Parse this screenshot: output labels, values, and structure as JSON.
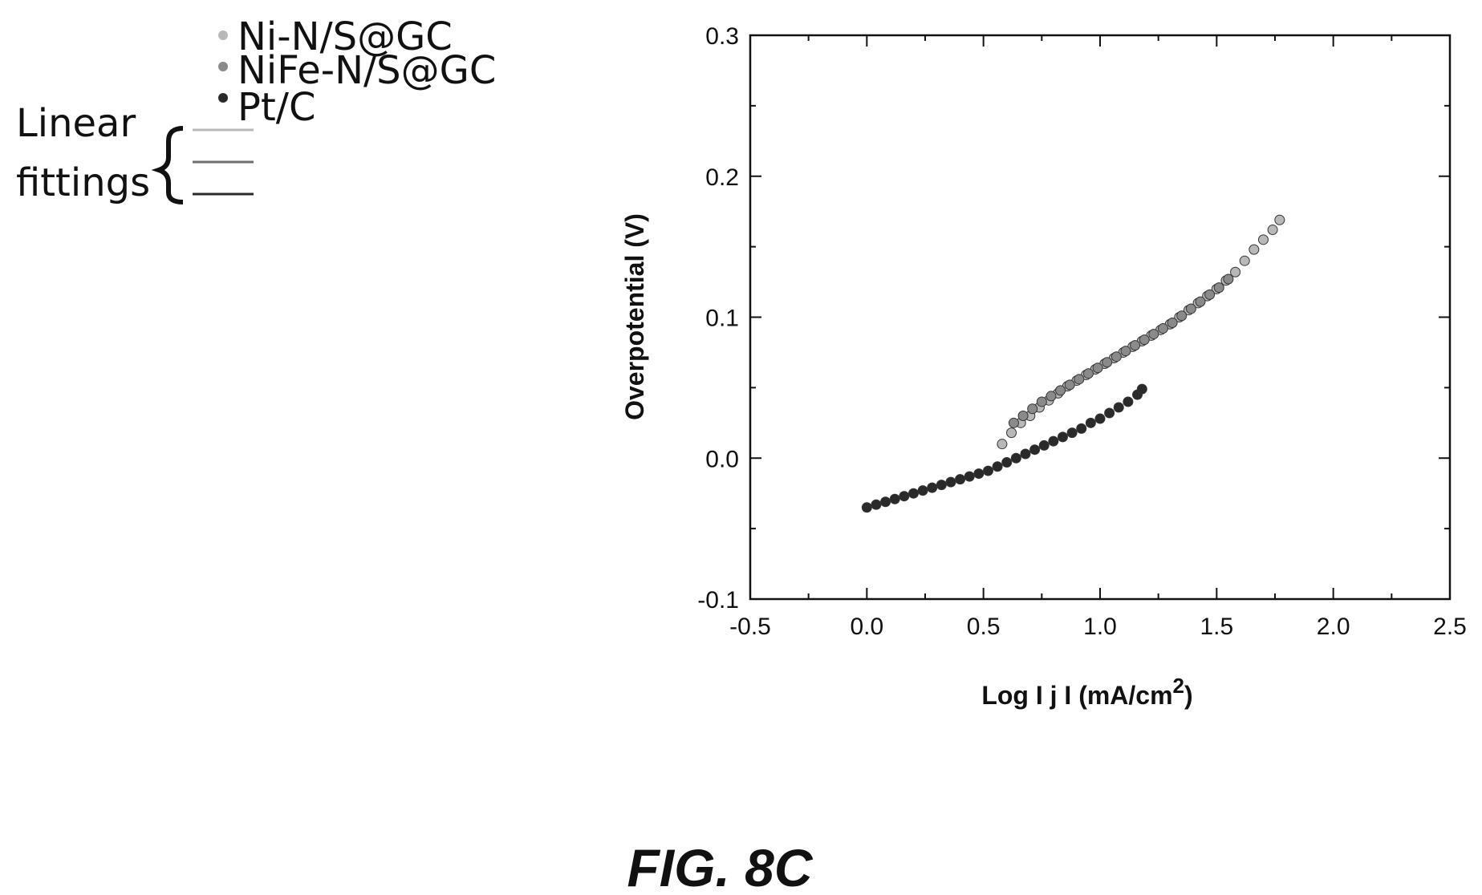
{
  "figure": {
    "caption": "FIG. 8C"
  },
  "legend": {
    "entries": [
      {
        "label": "Ni-N/S@GC",
        "color": "#b8b8b8"
      },
      {
        "label": "NiFe-N/S@GC",
        "color": "#8a8a8a"
      },
      {
        "label": "Pt/C",
        "color": "#2a2a2a"
      }
    ],
    "fit_label_line1": "Linear",
    "fit_label_line2": "fittings",
    "fit_line_colors": [
      "#b8b8b8",
      "#6e6e6e",
      "#2a2a2a"
    ]
  },
  "chart_data": {
    "type": "scatter",
    "xlabel": "Log I j I (mA/cm",
    "xlabel_sup": "2",
    "xlabel_close": ")",
    "ylabel": "Overpotential (V)",
    "xlim": [
      -0.5,
      2.5
    ],
    "ylim": [
      -0.1,
      0.3
    ],
    "xticks": [
      "-0.5",
      "0.0",
      "0.5",
      "1.0",
      "1.5",
      "2.0",
      "2.5"
    ],
    "yticks": [
      "-0.1",
      "0.0",
      "0.1",
      "0.2",
      "0.3"
    ],
    "series": [
      {
        "name": "Ni-N/S@GC",
        "color": "#b8b8b8",
        "points": [
          [
            0.58,
            0.01
          ],
          [
            0.62,
            0.018
          ],
          [
            0.66,
            0.025
          ],
          [
            0.7,
            0.03
          ],
          [
            0.74,
            0.036
          ],
          [
            0.78,
            0.041
          ],
          [
            0.82,
            0.046
          ],
          [
            0.86,
            0.051
          ],
          [
            0.9,
            0.055
          ],
          [
            0.94,
            0.059
          ],
          [
            0.98,
            0.063
          ],
          [
            1.02,
            0.067
          ],
          [
            1.06,
            0.071
          ],
          [
            1.1,
            0.075
          ],
          [
            1.14,
            0.079
          ],
          [
            1.18,
            0.083
          ],
          [
            1.22,
            0.087
          ],
          [
            1.26,
            0.091
          ],
          [
            1.3,
            0.095
          ],
          [
            1.34,
            0.1
          ],
          [
            1.38,
            0.105
          ],
          [
            1.42,
            0.11
          ],
          [
            1.46,
            0.115
          ],
          [
            1.5,
            0.12
          ],
          [
            1.54,
            0.126
          ],
          [
            1.58,
            0.132
          ],
          [
            1.62,
            0.14
          ],
          [
            1.66,
            0.148
          ],
          [
            1.7,
            0.155
          ],
          [
            1.74,
            0.162
          ],
          [
            1.77,
            0.169
          ]
        ]
      },
      {
        "name": "NiFe-N/S@GC",
        "color": "#8a8a8a",
        "points": [
          [
            0.63,
            0.025
          ],
          [
            0.67,
            0.03
          ],
          [
            0.71,
            0.035
          ],
          [
            0.75,
            0.04
          ],
          [
            0.79,
            0.044
          ],
          [
            0.83,
            0.048
          ],
          [
            0.87,
            0.052
          ],
          [
            0.91,
            0.056
          ],
          [
            0.95,
            0.06
          ],
          [
            0.99,
            0.064
          ],
          [
            1.03,
            0.068
          ],
          [
            1.07,
            0.072
          ],
          [
            1.11,
            0.076
          ],
          [
            1.15,
            0.08
          ],
          [
            1.19,
            0.084
          ],
          [
            1.23,
            0.088
          ],
          [
            1.27,
            0.092
          ],
          [
            1.31,
            0.096
          ],
          [
            1.35,
            0.101
          ],
          [
            1.39,
            0.106
          ],
          [
            1.43,
            0.111
          ],
          [
            1.47,
            0.116
          ],
          [
            1.51,
            0.121
          ],
          [
            1.55,
            0.127
          ]
        ]
      },
      {
        "name": "Pt/C",
        "color": "#2a2a2a",
        "points": [
          [
            0.0,
            -0.035
          ],
          [
            0.04,
            -0.033
          ],
          [
            0.08,
            -0.031
          ],
          [
            0.12,
            -0.029
          ],
          [
            0.16,
            -0.027
          ],
          [
            0.2,
            -0.025
          ],
          [
            0.24,
            -0.023
          ],
          [
            0.28,
            -0.021
          ],
          [
            0.32,
            -0.019
          ],
          [
            0.36,
            -0.017
          ],
          [
            0.4,
            -0.015
          ],
          [
            0.44,
            -0.013
          ],
          [
            0.48,
            -0.011
          ],
          [
            0.52,
            -0.009
          ],
          [
            0.56,
            -0.006
          ],
          [
            0.6,
            -0.003
          ],
          [
            0.64,
            0.0
          ],
          [
            0.68,
            0.003
          ],
          [
            0.72,
            0.006
          ],
          [
            0.76,
            0.009
          ],
          [
            0.8,
            0.012
          ],
          [
            0.84,
            0.015
          ],
          [
            0.88,
            0.018
          ],
          [
            0.92,
            0.021
          ],
          [
            0.96,
            0.025
          ],
          [
            1.0,
            0.028
          ],
          [
            1.04,
            0.032
          ],
          [
            1.08,
            0.036
          ],
          [
            1.12,
            0.04
          ],
          [
            1.16,
            0.045
          ],
          [
            1.18,
            0.049
          ]
        ]
      }
    ]
  }
}
